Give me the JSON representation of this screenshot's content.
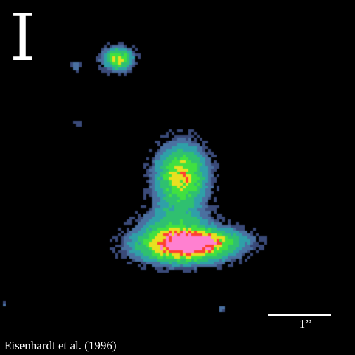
{
  "image": {
    "panel_label": "I",
    "scale_bar_label": "1’’",
    "credit": "Eisenhardt et al. (1996)",
    "colors": {
      "background": "#000000",
      "text": "#ffffff",
      "colormap": [
        "#3a4a78",
        "#4a70a0",
        "#2fa0a8",
        "#2fc070",
        "#40e040",
        "#e8e020",
        "#ff4030",
        "#ff80d0"
      ]
    }
  }
}
